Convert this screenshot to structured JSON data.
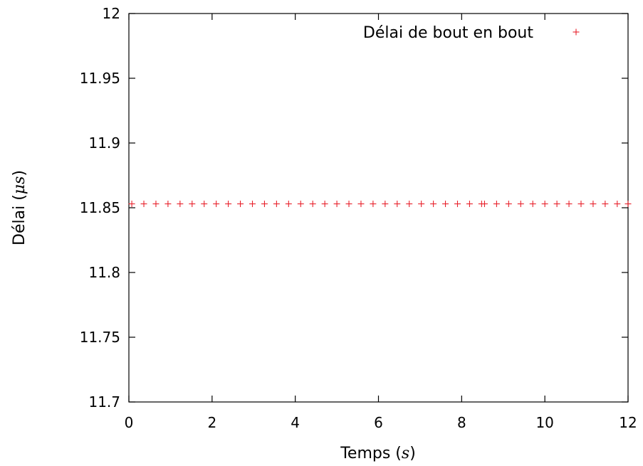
{
  "chart_data": {
    "type": "scatter",
    "xlabel_text": "Temps (",
    "xlabel_var": "s",
    "xlabel_close": ")",
    "ylabel_text": "Délai (",
    "ylabel_var": "μs",
    "ylabel_close": ")",
    "xlim": [
      0,
      12
    ],
    "ylim": [
      11.7,
      12
    ],
    "x_ticks": [
      0,
      2,
      4,
      6,
      8,
      10,
      12
    ],
    "y_ticks": [
      11.7,
      11.75,
      11.8,
      11.85,
      11.9,
      11.95,
      12
    ],
    "x_tick_labels": [
      "0",
      "2",
      "4",
      "6",
      "8",
      "10",
      "12"
    ],
    "y_tick_labels": [
      "11.7",
      "11.75",
      "11.8",
      "11.85",
      "11.9",
      "11.95",
      "12"
    ],
    "grid": false,
    "legend_position": "top-right",
    "marker": "+",
    "series": [
      {
        "name": "Délai de bout en bout",
        "color": "#e8202a",
        "x": [
          0.07,
          0.36,
          0.65,
          0.94,
          1.23,
          1.52,
          1.81,
          2.1,
          2.39,
          2.68,
          2.97,
          3.26,
          3.55,
          3.84,
          4.13,
          4.42,
          4.71,
          5.0,
          5.29,
          5.58,
          5.87,
          6.16,
          6.45,
          6.74,
          7.03,
          7.32,
          7.61,
          7.9,
          8.19,
          8.48,
          8.55,
          8.84,
          9.13,
          9.42,
          9.71,
          10.0,
          10.29,
          10.58,
          10.87,
          11.16,
          11.45,
          11.74,
          12.0
        ],
        "y": [
          11.853,
          11.853,
          11.853,
          11.853,
          11.853,
          11.853,
          11.853,
          11.853,
          11.853,
          11.853,
          11.853,
          11.853,
          11.853,
          11.853,
          11.853,
          11.853,
          11.853,
          11.853,
          11.853,
          11.853,
          11.853,
          11.853,
          11.853,
          11.853,
          11.853,
          11.853,
          11.853,
          11.853,
          11.853,
          11.853,
          11.853,
          11.853,
          11.853,
          11.853,
          11.853,
          11.853,
          11.853,
          11.853,
          11.853,
          11.853,
          11.853,
          11.853,
          11.853
        ]
      }
    ]
  }
}
